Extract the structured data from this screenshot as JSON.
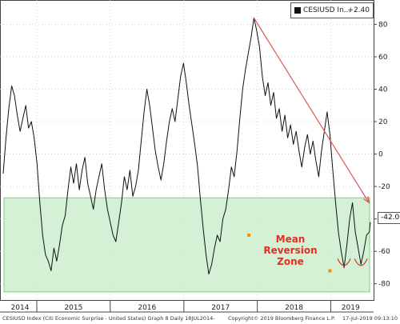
{
  "legend": {
    "label": "CESIUSD In...",
    "value": "+2.40"
  },
  "last_value_tag": "-42.00",
  "annotation": {
    "line1": "Mean",
    "line2": "Reversion",
    "line3": "Zone"
  },
  "footer": {
    "left": "CESIUSD Index (Citi Economic Surprise - United States) Graph 8  Daily 18JUL2014-",
    "middle": "Copyright© 2019 Bloomberg Finance L.P.",
    "right": "17-Jul-2019 09:13:10"
  },
  "colors": {
    "series": "#111111",
    "zone_fill": "#cdeecf",
    "zone_border": "#7ed07e",
    "trend": "#e05555",
    "marker": "#ff8c00",
    "annotation": "#e03020"
  },
  "chart_data": {
    "type": "line",
    "title": "",
    "xlabel": "",
    "ylabel": "",
    "ylim": [
      -90,
      95
    ],
    "yticks": [
      80,
      60,
      40,
      20,
      0,
      -20,
      -40,
      -60,
      -80
    ],
    "x_tick_labels": [
      "2014",
      "2015",
      "2016",
      "2017",
      "2018",
      "2019"
    ],
    "x_range": [
      "2014-07-18",
      "2019-07-17"
    ],
    "series": [
      {
        "name": "CESIUSD Index",
        "points": [
          [
            "2014-07-18",
            -12
          ],
          [
            "2014-08-01",
            10
          ],
          [
            "2014-08-15",
            28
          ],
          [
            "2014-08-29",
            42
          ],
          [
            "2014-09-12",
            36
          ],
          [
            "2014-09-26",
            24
          ],
          [
            "2014-10-10",
            14
          ],
          [
            "2014-10-24",
            22
          ],
          [
            "2014-11-07",
            30
          ],
          [
            "2014-11-21",
            16
          ],
          [
            "2014-12-05",
            20
          ],
          [
            "2014-12-19",
            10
          ],
          [
            "2015-01-02",
            -6
          ],
          [
            "2015-01-16",
            -30
          ],
          [
            "2015-01-30",
            -50
          ],
          [
            "2015-02-13",
            -62
          ],
          [
            "2015-02-27",
            -66
          ],
          [
            "2015-03-13",
            -72
          ],
          [
            "2015-03-27",
            -58
          ],
          [
            "2015-04-10",
            -66
          ],
          [
            "2015-04-24",
            -56
          ],
          [
            "2015-05-08",
            -44
          ],
          [
            "2015-05-22",
            -38
          ],
          [
            "2015-06-05",
            -22
          ],
          [
            "2015-06-19",
            -8
          ],
          [
            "2015-07-03",
            -18
          ],
          [
            "2015-07-17",
            -6
          ],
          [
            "2015-07-31",
            -22
          ],
          [
            "2015-08-14",
            -10
          ],
          [
            "2015-08-28",
            -2
          ],
          [
            "2015-09-11",
            -18
          ],
          [
            "2015-09-25",
            -26
          ],
          [
            "2015-10-09",
            -34
          ],
          [
            "2015-10-23",
            -22
          ],
          [
            "2015-11-06",
            -14
          ],
          [
            "2015-11-20",
            -6
          ],
          [
            "2015-12-04",
            -22
          ],
          [
            "2015-12-18",
            -34
          ],
          [
            "2016-01-01",
            -42
          ],
          [
            "2016-01-15",
            -50
          ],
          [
            "2016-01-29",
            -54
          ],
          [
            "2016-02-12",
            -42
          ],
          [
            "2016-02-26",
            -30
          ],
          [
            "2016-03-11",
            -14
          ],
          [
            "2016-03-25",
            -22
          ],
          [
            "2016-04-08",
            -10
          ],
          [
            "2016-04-22",
            -26
          ],
          [
            "2016-05-06",
            -20
          ],
          [
            "2016-05-20",
            -10
          ],
          [
            "2016-06-03",
            8
          ],
          [
            "2016-06-17",
            26
          ],
          [
            "2016-07-01",
            40
          ],
          [
            "2016-07-15",
            30
          ],
          [
            "2016-07-29",
            16
          ],
          [
            "2016-08-12",
            2
          ],
          [
            "2016-08-26",
            -8
          ],
          [
            "2016-09-09",
            -16
          ],
          [
            "2016-09-23",
            -6
          ],
          [
            "2016-10-07",
            8
          ],
          [
            "2016-10-21",
            20
          ],
          [
            "2016-11-04",
            28
          ],
          [
            "2016-11-18",
            20
          ],
          [
            "2016-12-02",
            34
          ],
          [
            "2016-12-16",
            48
          ],
          [
            "2016-12-30",
            56
          ],
          [
            "2017-01-13",
            44
          ],
          [
            "2017-01-27",
            30
          ],
          [
            "2017-02-10",
            18
          ],
          [
            "2017-02-24",
            6
          ],
          [
            "2017-03-10",
            -8
          ],
          [
            "2017-03-24",
            -28
          ],
          [
            "2017-04-07",
            -46
          ],
          [
            "2017-04-21",
            -62
          ],
          [
            "2017-05-05",
            -74
          ],
          [
            "2017-05-19",
            -68
          ],
          [
            "2017-06-02",
            -58
          ],
          [
            "2017-06-16",
            -50
          ],
          [
            "2017-06-30",
            -54
          ],
          [
            "2017-07-14",
            -40
          ],
          [
            "2017-07-28",
            -34
          ],
          [
            "2017-08-11",
            -22
          ],
          [
            "2017-08-25",
            -8
          ],
          [
            "2017-09-08",
            -14
          ],
          [
            "2017-09-22",
            2
          ],
          [
            "2017-10-06",
            22
          ],
          [
            "2017-10-20",
            40
          ],
          [
            "2017-11-03",
            52
          ],
          [
            "2017-11-17",
            62
          ],
          [
            "2017-12-01",
            72
          ],
          [
            "2017-12-15",
            84
          ],
          [
            "2017-12-29",
            76
          ],
          [
            "2018-01-12",
            66
          ],
          [
            "2018-01-26",
            48
          ],
          [
            "2018-02-09",
            36
          ],
          [
            "2018-02-23",
            44
          ],
          [
            "2018-03-09",
            30
          ],
          [
            "2018-03-23",
            38
          ],
          [
            "2018-04-06",
            22
          ],
          [
            "2018-04-20",
            28
          ],
          [
            "2018-05-04",
            14
          ],
          [
            "2018-05-18",
            24
          ],
          [
            "2018-06-01",
            10
          ],
          [
            "2018-06-15",
            18
          ],
          [
            "2018-06-29",
            6
          ],
          [
            "2018-07-13",
            14
          ],
          [
            "2018-07-27",
            2
          ],
          [
            "2018-08-10",
            -8
          ],
          [
            "2018-08-24",
            4
          ],
          [
            "2018-09-07",
            12
          ],
          [
            "2018-09-21",
            0
          ],
          [
            "2018-10-05",
            8
          ],
          [
            "2018-10-19",
            -4
          ],
          [
            "2018-11-02",
            -14
          ],
          [
            "2018-11-16",
            2
          ],
          [
            "2018-11-30",
            14
          ],
          [
            "2018-12-14",
            26
          ],
          [
            "2018-12-28",
            12
          ],
          [
            "2019-01-11",
            -10
          ],
          [
            "2019-01-25",
            -30
          ],
          [
            "2019-02-08",
            -48
          ],
          [
            "2019-02-22",
            -60
          ],
          [
            "2019-03-08",
            -70
          ],
          [
            "2019-03-22",
            -56
          ],
          [
            "2019-04-05",
            -40
          ],
          [
            "2019-04-19",
            -30
          ],
          [
            "2019-05-03",
            -48
          ],
          [
            "2019-05-17",
            -58
          ],
          [
            "2019-05-31",
            -68
          ],
          [
            "2019-06-14",
            -60
          ],
          [
            "2019-06-28",
            -50
          ],
          [
            "2019-07-12",
            -48
          ],
          [
            "2019-07-17",
            -42
          ]
        ]
      }
    ],
    "zone": {
      "y_from": -85,
      "y_to": -27
    },
    "trendline": {
      "from": [
        "2017-12-15",
        84
      ],
      "to": [
        "2019-07-10",
        -30
      ]
    },
    "markers": [
      {
        "date": "2017-11-20",
        "value": -50
      },
      {
        "date": "2018-12-28",
        "value": -72
      }
    ],
    "smile_marks": [
      {
        "center": "2019-03-08"
      },
      {
        "center": "2019-05-31"
      }
    ]
  }
}
